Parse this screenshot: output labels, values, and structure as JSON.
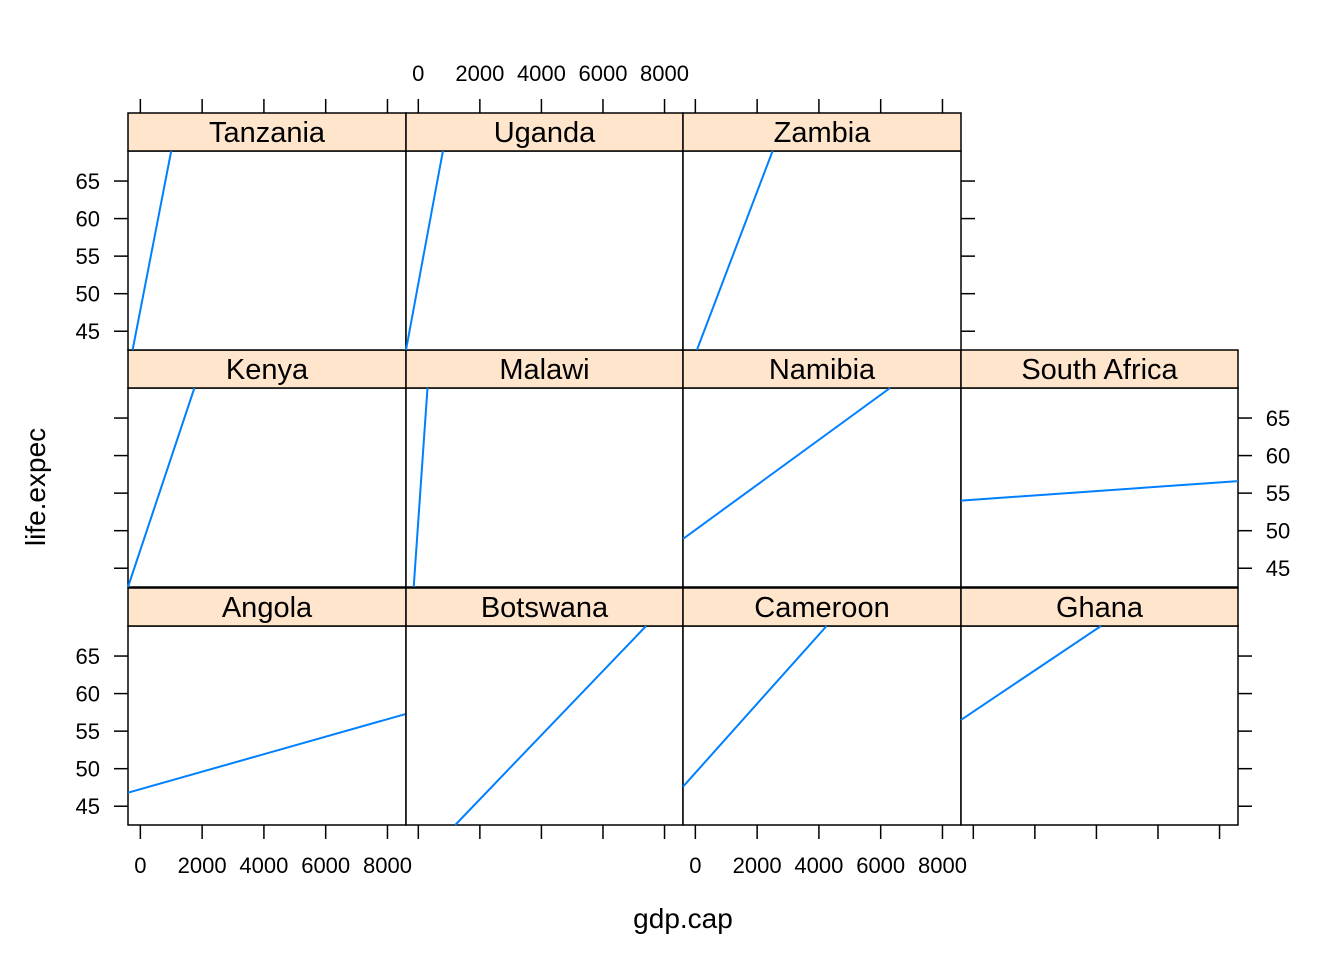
{
  "chart_data": {
    "type": "line",
    "layout": {
      "columns": 4,
      "rows": 3
    },
    "xlabel": "gdp.cap",
    "ylabel": "life.expec",
    "xlim": [
      -400,
      8600
    ],
    "ylim": [
      42.5,
      69.0
    ],
    "x_ticks": [
      0,
      2000,
      4000,
      6000,
      8000
    ],
    "y_ticks": [
      45,
      50,
      55,
      60,
      65
    ],
    "strip_color": "#ffe5cc",
    "line_color": "#0080ff",
    "panels": [
      {
        "name": "Angola",
        "row": 0,
        "col": 0,
        "x": [
          -400,
          8600
        ],
        "y": [
          46.8,
          57.3
        ]
      },
      {
        "name": "Botswana",
        "row": 0,
        "col": 1,
        "x": [
          1200,
          7400
        ],
        "y": [
          42.5,
          69.0
        ]
      },
      {
        "name": "Cameroon",
        "row": 0,
        "col": 2,
        "x": [
          -400,
          4250
        ],
        "y": [
          47.6,
          69.0
        ]
      },
      {
        "name": "Ghana",
        "row": 0,
        "col": 3,
        "x": [
          -400,
          4150
        ],
        "y": [
          56.5,
          69.0
        ]
      },
      {
        "name": "Kenya",
        "row": 1,
        "col": 0,
        "x": [
          -400,
          1750
        ],
        "y": [
          42.5,
          69.0
        ]
      },
      {
        "name": "Malawi",
        "row": 1,
        "col": 1,
        "x": [
          -150,
          300
        ],
        "y": [
          42.5,
          69.0
        ]
      },
      {
        "name": "Namibia",
        "row": 1,
        "col": 2,
        "x": [
          -400,
          6300
        ],
        "y": [
          48.9,
          69.0
        ]
      },
      {
        "name": "South Africa",
        "row": 1,
        "col": 3,
        "x": [
          -400,
          8600
        ],
        "y": [
          54.0,
          56.6
        ]
      },
      {
        "name": "Tanzania",
        "row": 2,
        "col": 0,
        "x": [
          -250,
          1000
        ],
        "y": [
          42.5,
          69.0
        ]
      },
      {
        "name": "Uganda",
        "row": 2,
        "col": 1,
        "x": [
          -400,
          800
        ],
        "y": [
          42.5,
          69.0
        ]
      },
      {
        "name": "Zambia",
        "row": 2,
        "col": 2,
        "x": [
          50,
          2500
        ],
        "y": [
          42.5,
          69.0
        ]
      }
    ]
  }
}
